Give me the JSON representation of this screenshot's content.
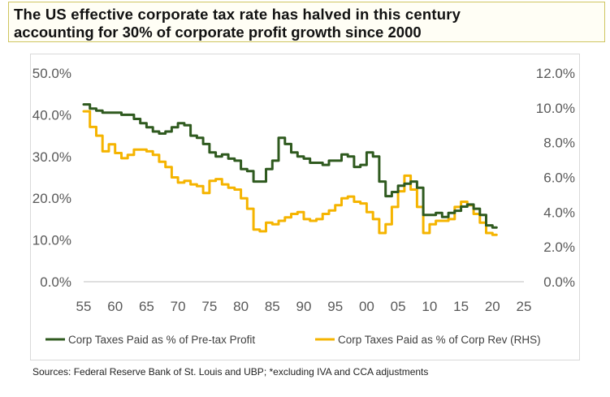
{
  "title": {
    "line1": "The US effective corporate tax rate has halved in this century",
    "line2": "accounting for 30% of corporate profit growth since 2000"
  },
  "source": "Sources:  Federal Reserve Bank of St. Louis and UBP; *excluding IVA and CCA adjustments",
  "chart_data": {
    "type": "line",
    "x_axis": {
      "ticks": [
        "55",
        "60",
        "65",
        "70",
        "75",
        "80",
        "85",
        "90",
        "95",
        "00",
        "05",
        "10",
        "15",
        "20",
        "25"
      ],
      "range": [
        1955,
        2025
      ]
    },
    "y_left": {
      "range": [
        0,
        50
      ],
      "ticks": [
        "0.0%",
        "10.0%",
        "20.0%",
        "30.0%",
        "40.0%",
        "50.0%"
      ]
    },
    "y_right": {
      "range": [
        0,
        12
      ],
      "ticks": [
        "0.0%",
        "2.0%",
        "4.0%",
        "6.0%",
        "8.0%",
        "10.0%",
        "12.0%"
      ]
    },
    "grid": false,
    "legend_position": "bottom",
    "series": [
      {
        "name": "Corp Taxes Paid as % of Pre-tax Profit",
        "axis": "left",
        "color": "#2f5a1f",
        "x": [
          1955,
          1956,
          1957,
          1958,
          1959,
          1960,
          1961,
          1962,
          1963,
          1964,
          1965,
          1966,
          1967,
          1968,
          1969,
          1970,
          1971,
          1972,
          1973,
          1974,
          1975,
          1976,
          1977,
          1978,
          1979,
          1980,
          1981,
          1982,
          1983,
          1984,
          1985,
          1986,
          1987,
          1988,
          1989,
          1990,
          1991,
          1992,
          1993,
          1994,
          1995,
          1996,
          1997,
          1998,
          1999,
          2000,
          2001,
          2002,
          2003,
          2004,
          2005,
          2006,
          2007,
          2008,
          2009,
          2010,
          2011,
          2012,
          2013,
          2014,
          2015,
          2016,
          2017,
          2018,
          2019,
          2020
        ],
        "y": [
          42.5,
          41.5,
          41,
          40.5,
          40.5,
          40.5,
          40,
          40,
          39,
          38,
          37,
          36,
          35.5,
          36,
          37,
          38,
          37.5,
          35,
          34.5,
          33,
          31,
          30,
          30.5,
          29.5,
          29,
          27,
          26.5,
          24,
          24,
          27,
          29,
          34.5,
          33,
          31,
          30,
          29.5,
          28.5,
          28.5,
          28,
          29,
          29,
          30.5,
          30,
          27.5,
          28,
          31,
          30,
          24,
          20.5,
          21.5,
          23,
          23.5,
          24,
          22.5,
          16,
          16,
          16.5,
          15.5,
          16.5,
          17,
          18,
          18.5,
          17.5,
          16,
          13.5,
          13
        ]
      },
      {
        "name": "Corp Taxes Paid as % of Corp Rev (RHS)",
        "axis": "right",
        "color": "#f5b400",
        "x": [
          1955,
          1956,
          1957,
          1958,
          1959,
          1960,
          1961,
          1962,
          1963,
          1964,
          1965,
          1966,
          1967,
          1968,
          1969,
          1970,
          1971,
          1972,
          1973,
          1974,
          1975,
          1976,
          1977,
          1978,
          1979,
          1980,
          1981,
          1982,
          1983,
          1984,
          1985,
          1986,
          1987,
          1988,
          1989,
          1990,
          1991,
          1992,
          1993,
          1994,
          1995,
          1996,
          1997,
          1998,
          1999,
          2000,
          2001,
          2002,
          2003,
          2004,
          2005,
          2006,
          2007,
          2008,
          2009,
          2010,
          2011,
          2012,
          2013,
          2014,
          2015,
          2016,
          2017,
          2018,
          2019,
          2020
        ],
        "y": [
          9.8,
          8.9,
          8.4,
          7.5,
          7.9,
          7.4,
          7.1,
          7.3,
          7.6,
          7.6,
          7.5,
          7.3,
          6.9,
          6.6,
          6.0,
          5.7,
          5.8,
          5.6,
          5.5,
          5.1,
          5.8,
          5.9,
          5.6,
          5.4,
          5.3,
          4.8,
          4.2,
          3.0,
          2.9,
          3.4,
          3.3,
          3.5,
          3.7,
          3.9,
          4.0,
          3.6,
          3.5,
          3.6,
          3.9,
          4.1,
          4.4,
          4.8,
          4.9,
          4.6,
          4.5,
          4.0,
          3.6,
          2.8,
          3.3,
          4.3,
          5.2,
          6.1,
          5.3,
          4.3,
          2.8,
          3.3,
          3.5,
          3.5,
          3.6,
          4.3,
          4.6,
          4.4,
          3.9,
          3.4,
          2.8,
          2.7
        ]
      }
    ]
  }
}
